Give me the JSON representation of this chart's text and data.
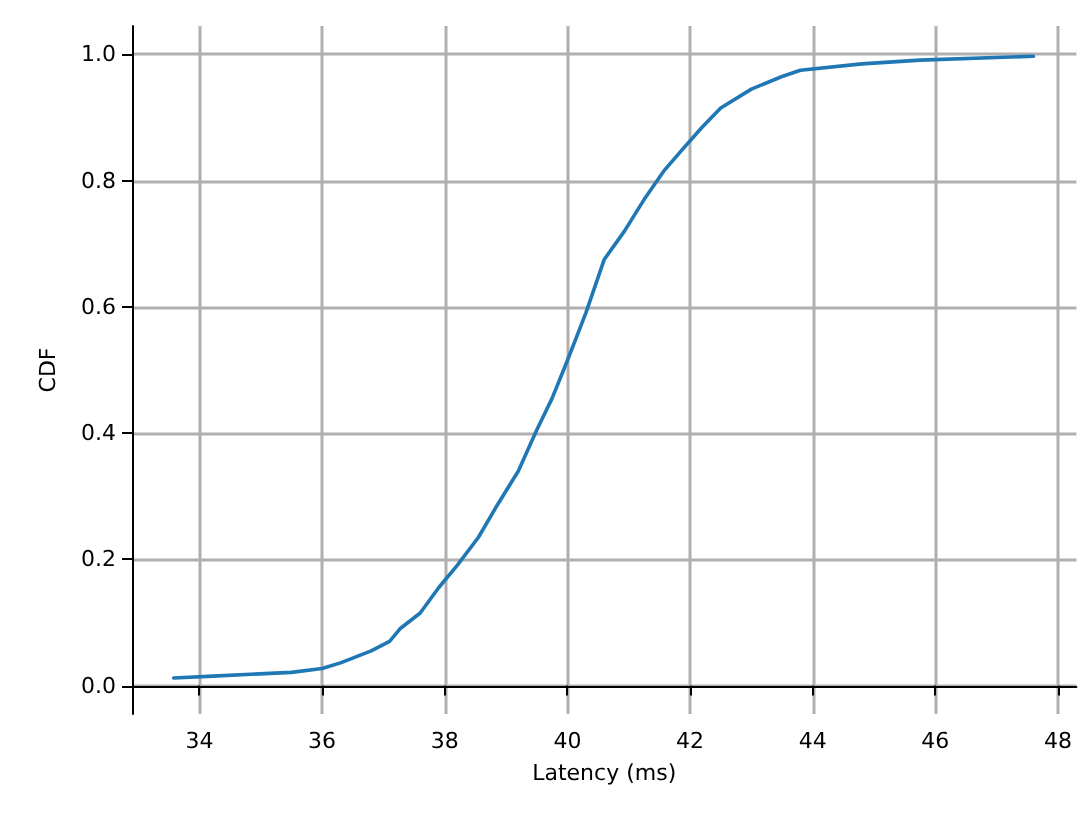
{
  "chart_data": {
    "type": "line",
    "xlabel": "Latency (ms)",
    "ylabel": "CDF",
    "grid": true,
    "xlim": [
      32.9,
      48.3
    ],
    "ylim": [
      -0.045,
      1.045
    ],
    "xticks": [
      34,
      36,
      38,
      40,
      42,
      44,
      46,
      48
    ],
    "yticks": [
      {
        "value": 0,
        "label": "0.0"
      },
      {
        "value": 0.2,
        "label": "0.2"
      },
      {
        "value": 0.4,
        "label": "0.4"
      },
      {
        "value": 0.6,
        "label": "0.6"
      },
      {
        "value": 0.8,
        "label": "0.8"
      },
      {
        "value": 1,
        "label": "1.0"
      }
    ],
    "series": [
      {
        "color": "#1f77b4",
        "x": [
          33.58,
          34.22,
          35.5,
          36.0,
          36.3,
          36.8,
          37.1,
          37.27,
          37.6,
          37.9,
          38.2,
          38.55,
          38.85,
          39.2,
          39.5,
          39.75,
          40.0,
          40.3,
          40.6,
          40.93,
          41.25,
          41.57,
          41.88,
          42.2,
          42.5,
          43.0,
          43.5,
          43.8,
          44.8,
          45.75,
          47.6
        ],
        "values": [
          0.012,
          0.015,
          0.021,
          0.027,
          0.036,
          0.055,
          0.07,
          0.09,
          0.115,
          0.155,
          0.19,
          0.235,
          0.285,
          0.34,
          0.405,
          0.455,
          0.515,
          0.59,
          0.675,
          0.72,
          0.77,
          0.815,
          0.85,
          0.885,
          0.915,
          0.945,
          0.965,
          0.975,
          0.985,
          0.991,
          0.997
        ]
      }
    ]
  }
}
